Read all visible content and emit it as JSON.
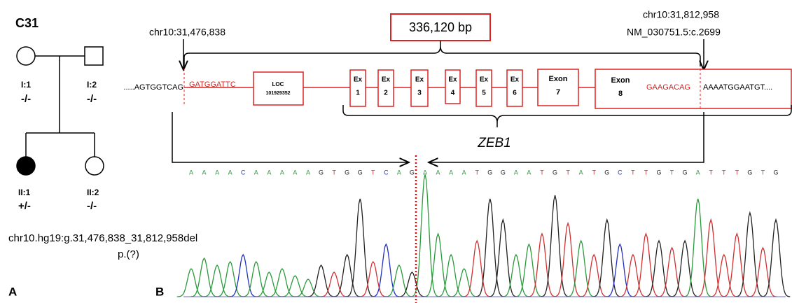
{
  "panel_a": {
    "label": "A",
    "family": "C31",
    "individuals": [
      {
        "id": "I:1",
        "genotype": "-/-"
      },
      {
        "id": "I:2",
        "genotype": "-/-"
      },
      {
        "id": "II:1",
        "genotype": "+/-"
      },
      {
        "id": "II:2",
        "genotype": "-/-"
      }
    ],
    "variant": "chr10.hg19:g.31,476,838_31,812,958del",
    "protein": "p.(?)"
  },
  "panel_b": {
    "label": "B",
    "breakpoint_left": "chr10:31,476,838",
    "deletion_size": "336,120 bp",
    "breakpoint_right": "chr10:31,812,958",
    "transcript_position": "NM_030751.5:c.2699",
    "left_flank": ".....AGTGGTCAG",
    "deleted_start": "GATGGATTC",
    "loc": {
      "name": "LOC",
      "id": "101929352"
    },
    "exons": [
      {
        "label": "Ex",
        "number": "1"
      },
      {
        "label": "Ex",
        "number": "2"
      },
      {
        "label": "Ex",
        "number": "3"
      },
      {
        "label": "Ex",
        "number": "4"
      },
      {
        "label": "Ex",
        "number": "5"
      },
      {
        "label": "Ex",
        "number": "6"
      },
      {
        "label": "Exon",
        "number": "7"
      },
      {
        "label": "Exon",
        "number": "8"
      }
    ],
    "deleted_end": "GAAGACAG",
    "right_flank": "AAAATGGAATGT....",
    "gene": "ZEB1",
    "sequence": [
      "A",
      "A",
      "A",
      "A",
      "C",
      "A",
      "A",
      "A",
      "A",
      "A",
      "G",
      "T",
      "G",
      "G",
      "T",
      "C",
      "A",
      "G",
      "A",
      "A",
      "A",
      "A",
      "T",
      "G",
      "G",
      "A",
      "A",
      "T",
      "G",
      "T",
      "A",
      "T",
      "G",
      "C",
      "T",
      "T",
      "G",
      "T",
      "G",
      "A",
      "T",
      "T",
      "T",
      "G",
      "T",
      "G"
    ]
  }
}
